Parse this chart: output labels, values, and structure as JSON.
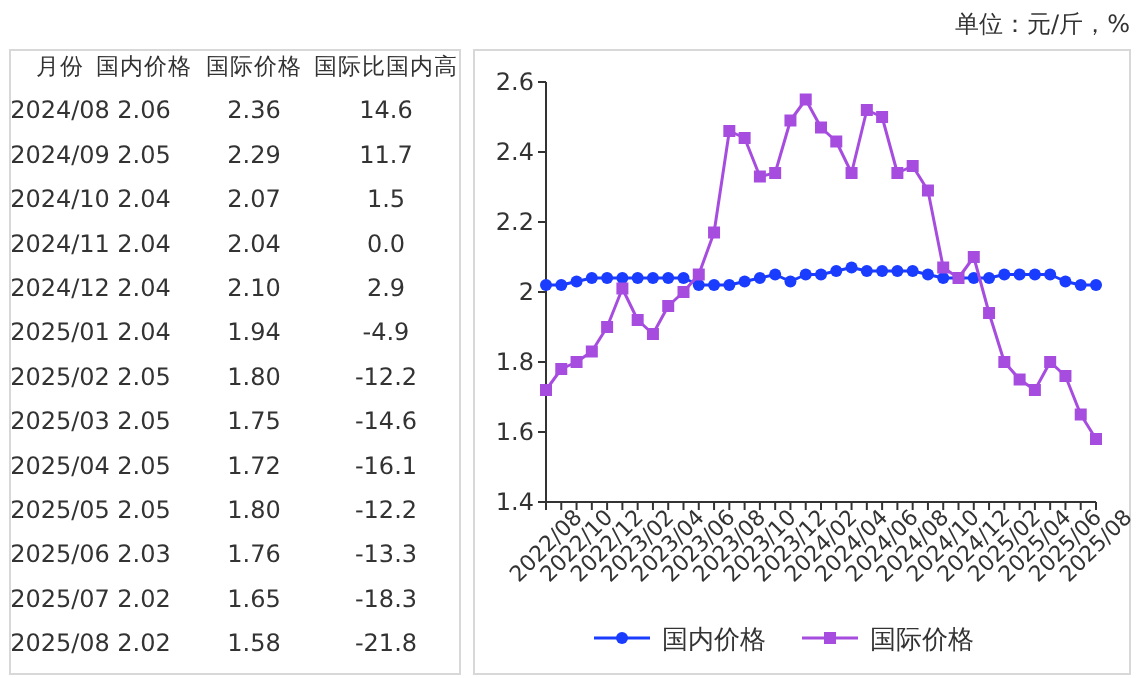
{
  "chart_data": [
    {
      "type": "other",
      "xlabel": "月份",
      "categories": [
        "2024/08",
        "2024/09",
        "2024/10",
        "2024/11",
        "2024/12",
        "2025/01",
        "2025/02",
        "2025/03",
        "2025/04",
        "2025/05",
        "2025/06",
        "2025/07",
        "2025/08"
      ],
      "series": [
        {
          "name": "国内价格",
          "values": [
            2.06,
            2.05,
            2.04,
            2.04,
            2.04,
            2.04,
            2.05,
            2.05,
            2.05,
            2.05,
            2.03,
            2.02,
            2.02
          ],
          "value_labels": [
            "2.06",
            "2.05",
            "2.04",
            "2.04",
            "2.04",
            "2.04",
            "2.05",
            "2.05",
            "2.05",
            "2.05",
            "2.03",
            "2.02",
            "2.02"
          ]
        },
        {
          "name": "国际价格",
          "values": [
            2.36,
            2.29,
            2.07,
            2.04,
            2.1,
            1.94,
            1.8,
            1.75,
            1.72,
            1.8,
            1.76,
            1.65,
            1.58
          ],
          "value_labels": [
            "2.36",
            "2.29",
            "2.07",
            "2.04",
            "2.10",
            "1.94",
            "1.80",
            "1.75",
            "1.72",
            "1.80",
            "1.76",
            "1.65",
            "1.58"
          ]
        },
        {
          "name": "国际比国内高",
          "values": [
            14.6,
            11.7,
            1.5,
            0.0,
            2.9,
            -4.9,
            -12.2,
            -14.6,
            -16.1,
            -12.2,
            -13.3,
            -18.3,
            -21.8
          ],
          "value_labels": [
            "14.6",
            "11.7",
            "1.5",
            "0.0",
            "2.9",
            "-4.9",
            "-12.2",
            "-14.6",
            "-16.1",
            "-12.2",
            "-13.3",
            "-18.3",
            "-21.8"
          ]
        }
      ]
    },
    {
      "type": "line",
      "annotations": [
        "单位：元/斤，%"
      ],
      "categories": [
        "2022/08",
        null,
        "2022/10",
        null,
        "2022/12",
        null,
        "2023/02",
        null,
        "2023/04",
        null,
        "2023/06",
        null,
        "2023/08",
        null,
        "2023/10",
        null,
        "2023/12",
        null,
        "2024/02",
        null,
        "2024/04",
        null,
        "2024/06",
        null,
        "2024/08",
        null,
        "2024/10",
        null,
        "2024/12",
        null,
        "2025/02",
        null,
        "2025/04",
        null,
        "2025/06",
        null,
        "2025/08"
      ],
      "ylim": [
        1.4,
        2.6
      ],
      "yticks": [
        1.4,
        1.6,
        1.8,
        2,
        2.2,
        2.4,
        2.6
      ],
      "grid": false,
      "legend": "bottom",
      "series": [
        {
          "name": "国内价格",
          "color": "#1a3cff",
          "marker": "circle",
          "values": [
            2.02,
            2.02,
            2.03,
            2.04,
            2.04,
            2.04,
            2.04,
            2.04,
            2.04,
            2.04,
            2.02,
            2.02,
            2.02,
            2.03,
            2.04,
            2.05,
            2.03,
            2.05,
            2.05,
            2.06,
            2.07,
            2.06,
            2.06,
            2.06,
            2.06,
            2.05,
            2.04,
            2.04,
            2.04,
            2.04,
            2.05,
            2.05,
            2.05,
            2.05,
            2.03,
            2.02,
            2.02
          ]
        },
        {
          "name": "国际价格",
          "color": "#a64de0",
          "marker": "square",
          "values": [
            1.72,
            1.78,
            1.8,
            1.83,
            1.9,
            2.01,
            1.92,
            1.88,
            1.96,
            2.0,
            2.05,
            2.17,
            2.46,
            2.44,
            2.33,
            2.34,
            2.49,
            2.55,
            2.47,
            2.43,
            2.34,
            2.52,
            2.5,
            2.34,
            2.36,
            2.29,
            2.07,
            2.04,
            2.1,
            1.94,
            1.8,
            1.75,
            1.72,
            1.8,
            1.76,
            1.65,
            1.58
          ]
        }
      ]
    }
  ]
}
